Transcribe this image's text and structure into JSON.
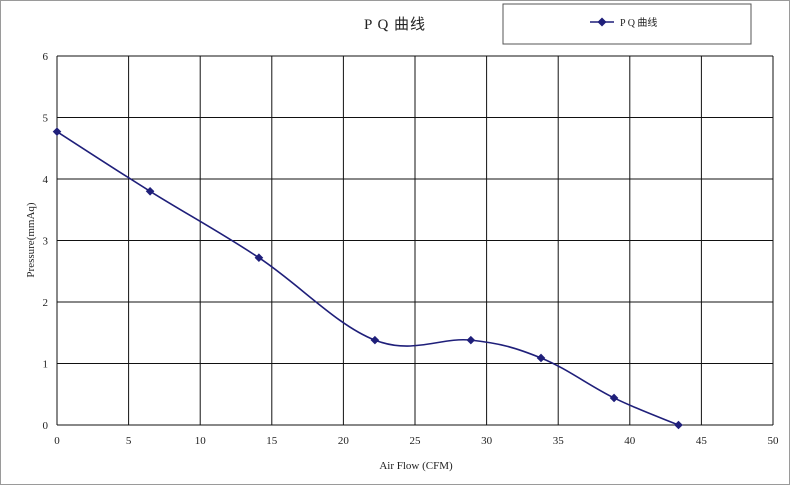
{
  "chart_data": {
    "type": "line",
    "title": "P Q 曲线",
    "xlabel": "Air Flow (CFM)",
    "ylabel": "Pressure(mmAq)",
    "xlim": [
      0,
      50
    ],
    "ylim": [
      0,
      6
    ],
    "x_ticks": [
      "0",
      "5",
      "10",
      "15",
      "20",
      "25",
      "30",
      "35",
      "40",
      "45",
      "50"
    ],
    "y_ticks": [
      "0",
      "1",
      "2",
      "3",
      "4",
      "5",
      "6"
    ],
    "grid": true,
    "legend_position": "top-right",
    "series": [
      {
        "name": "P Q 曲线",
        "color": "#1f1f7a",
        "marker": "diamond",
        "points": [
          {
            "x": 0,
            "y": 4.77
          },
          {
            "x": 6.5,
            "y": 3.8
          },
          {
            "x": 14.1,
            "y": 2.72
          },
          {
            "x": 22.2,
            "y": 1.38
          },
          {
            "x": 28.9,
            "y": 1.38
          },
          {
            "x": 33.8,
            "y": 1.09
          },
          {
            "x": 38.9,
            "y": 0.44
          },
          {
            "x": 43.4,
            "y": 0.0
          }
        ]
      }
    ]
  }
}
